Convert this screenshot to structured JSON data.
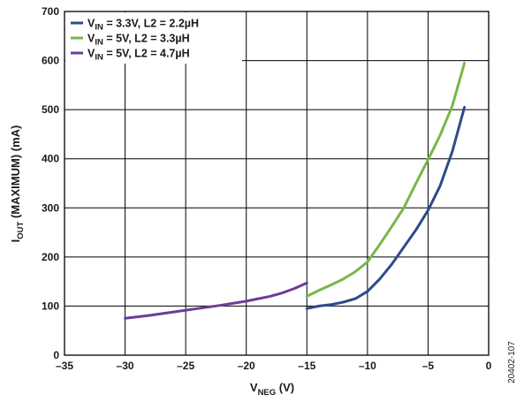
{
  "chart_data": {
    "type": "line",
    "xlabel": {
      "main": "V",
      "sub": "NEG",
      "rest": " (V)"
    },
    "ylabel": {
      "main": "I",
      "sub": "OUT",
      "rest": " (MAXIMUM) (mA)"
    },
    "xlim": [
      -35,
      0
    ],
    "ylim": [
      0,
      700
    ],
    "x_ticks": [
      -35,
      -30,
      -25,
      -20,
      -15,
      -10,
      -5,
      0
    ],
    "x_tick_labels": [
      "–35",
      "–30",
      "–25",
      "–20",
      "–15",
      "–10",
      "–5",
      "0"
    ],
    "y_ticks": [
      0,
      100,
      200,
      300,
      400,
      500,
      600,
      700
    ],
    "y_tick_labels": [
      "0",
      "100",
      "200",
      "300",
      "400",
      "500",
      "600",
      "700"
    ],
    "grid": true,
    "legend_position": "top-left",
    "series": [
      {
        "name": "VIN = 3.3V, L2 = 2.2µH",
        "legend": {
          "pre": "V",
          "sub": "IN",
          "post": " = 3.3V, L2 = 2.2µH"
        },
        "color": "#2e4a8c",
        "x": [
          -15,
          -14,
          -13,
          -12,
          -11,
          -10,
          -9,
          -8,
          -7,
          -6,
          -5,
          -4,
          -3,
          -2
        ],
        "y": [
          95,
          100,
          103,
          108,
          115,
          130,
          155,
          185,
          220,
          255,
          295,
          345,
          415,
          505
        ]
      },
      {
        "name": "VIN = 5V, L2 = 3.3µH",
        "legend": {
          "pre": "V",
          "sub": "IN",
          "post": " = 5V, L2 = 3.3µH"
        },
        "color": "#7ab648",
        "x": [
          -15,
          -14,
          -13,
          -12,
          -11,
          -10,
          -9,
          -8,
          -7,
          -6,
          -5,
          -4,
          -3,
          -2
        ],
        "y": [
          120,
          132,
          143,
          155,
          170,
          190,
          225,
          262,
          300,
          350,
          398,
          448,
          508,
          595
        ]
      },
      {
        "name": "VIN = 5V, L2 = 4.7µH",
        "legend": {
          "pre": "V",
          "sub": "IN",
          "post": " = 5V, L2 = 4.7µH"
        },
        "color": "#6d3c97",
        "x": [
          -30,
          -28,
          -26,
          -24,
          -22,
          -20,
          -18,
          -17,
          -16,
          -15
        ],
        "y": [
          75,
          81,
          88,
          95,
          102,
          110,
          120,
          127,
          136,
          147
        ]
      }
    ]
  },
  "footnote": "20402-107"
}
